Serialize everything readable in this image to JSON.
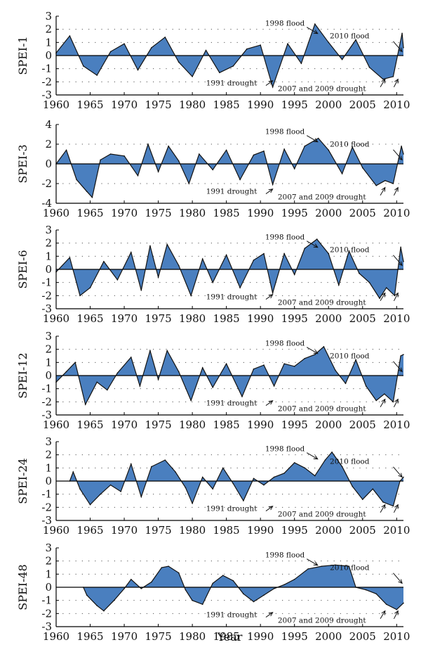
{
  "figure": {
    "xlabel": "Year",
    "colors": {
      "fill": "#4a7fbf",
      "line": "#111111",
      "grid": "#555555"
    }
  },
  "chart_data": [
    {
      "type": "area",
      "ylabel": "SPEI-1",
      "xlim": [
        1960,
        2011
      ],
      "ylim": [
        -3,
        3
      ],
      "xticks": [
        1960,
        1965,
        1970,
        1975,
        1980,
        1985,
        1990,
        1995,
        2000,
        2005,
        2010
      ],
      "yticks": [
        -3,
        -2,
        -1,
        0,
        1,
        2,
        3
      ],
      "grid": "dotted",
      "x": [
        1960,
        1962,
        1964,
        1966,
        1968,
        1970,
        1972,
        1974,
        1976,
        1978,
        1980,
        1982,
        1984,
        1986,
        1988,
        1990,
        1991.8,
        1994,
        1996,
        1998,
        2000,
        2002,
        2004,
        2006,
        2008,
        2009.5,
        2010.8,
        2011
      ],
      "y": [
        0.2,
        1.5,
        -0.8,
        -1.5,
        0.3,
        0.9,
        -1.1,
        0.6,
        1.4,
        -0.5,
        -1.6,
        0.4,
        -1.3,
        -0.8,
        0.5,
        0.8,
        -2.4,
        0.9,
        -0.6,
        2.4,
        1.0,
        -0.3,
        1.2,
        -0.9,
        -1.8,
        -1.6,
        1.7,
        0.6
      ],
      "annotations": [
        "1998 flood",
        "2010 flood",
        "1991 drought",
        "2007 and 2009 drought"
      ]
    },
    {
      "type": "area",
      "ylabel": "SPEI-3",
      "xlim": [
        1960,
        2011
      ],
      "ylim": [
        -4,
        4
      ],
      "xticks": [
        1960,
        1965,
        1970,
        1975,
        1980,
        1985,
        1990,
        1995,
        2000,
        2005,
        2010
      ],
      "yticks": [
        -4,
        -2,
        0,
        2,
        4
      ],
      "grid": "dotted",
      "x": [
        1960,
        1961.5,
        1963,
        1964.5,
        1965.3,
        1966.5,
        1968,
        1970,
        1972,
        1973.5,
        1975,
        1976.5,
        1978,
        1979.5,
        1981,
        1983,
        1985,
        1987,
        1989,
        1990.5,
        1991.8,
        1993.5,
        1995,
        1996.5,
        1998.5,
        2000,
        2002,
        2003.5,
        2005,
        2007,
        2008.3,
        2009.5,
        2010.7,
        2011
      ],
      "y": [
        0.0,
        1.4,
        -1.6,
        -2.8,
        -3.4,
        0.4,
        1.0,
        0.8,
        -1.2,
        2.0,
        -0.8,
        1.8,
        0.3,
        -2.0,
        1.0,
        -0.6,
        1.4,
        -1.6,
        0.9,
        1.3,
        -2.1,
        1.5,
        -0.5,
        1.8,
        2.6,
        1.4,
        -1.0,
        1.7,
        -0.4,
        -2.2,
        -1.7,
        -2.0,
        1.8,
        1.0
      ],
      "annotations": [
        "1998 flood",
        "2010 flood",
        "1991 drought",
        "2007 and 2009 drought"
      ]
    },
    {
      "type": "area",
      "ylabel": "SPEI-6",
      "xlim": [
        1960,
        2011
      ],
      "ylim": [
        -3,
        3
      ],
      "xticks": [
        1960,
        1965,
        1970,
        1975,
        1980,
        1985,
        1990,
        1995,
        2000,
        2005,
        2010
      ],
      "yticks": [
        -3,
        -2,
        -1,
        0,
        1,
        2,
        3
      ],
      "grid": "dotted",
      "x": [
        1960,
        1962,
        1963.5,
        1965,
        1967,
        1969,
        1971,
        1972.5,
        1973.8,
        1975,
        1976.3,
        1978,
        1979.8,
        1981.5,
        1983,
        1985,
        1987,
        1989,
        1990.5,
        1991.8,
        1993.5,
        1995,
        1996.5,
        1998.3,
        2000,
        2001.5,
        2003,
        2004.5,
        2006,
        2007.5,
        2008.5,
        2009.7,
        2010.6,
        2011
      ],
      "y": [
        -0.2,
        0.9,
        -2.0,
        -1.4,
        0.6,
        -0.8,
        1.3,
        -1.6,
        1.8,
        -0.6,
        1.9,
        0.3,
        -2.0,
        0.8,
        -1.0,
        1.1,
        -1.4,
        0.7,
        1.2,
        -1.8,
        1.2,
        -0.4,
        1.6,
        2.3,
        1.2,
        -1.2,
        1.4,
        -0.3,
        -1.0,
        -2.2,
        -1.4,
        -2.0,
        1.7,
        0.6
      ],
      "annotations": [
        "1998 flood",
        "2010 flood",
        "1991 drought",
        "2007 and 2009 drought"
      ]
    },
    {
      "type": "area",
      "ylabel": "SPEI-12",
      "xlim": [
        1960,
        2011
      ],
      "ylim": [
        -3,
        3
      ],
      "xticks": [
        1960,
        1965,
        1970,
        1975,
        1980,
        1985,
        1990,
        1995,
        2000,
        2005,
        2010
      ],
      "yticks": [
        -3,
        -2,
        -1,
        0,
        1,
        2,
        3
      ],
      "grid": "dotted",
      "x": [
        1960,
        1961.5,
        1962.8,
        1964.3,
        1966,
        1967.5,
        1969,
        1971,
        1972.3,
        1973.8,
        1975,
        1976.3,
        1978,
        1979.8,
        1981.5,
        1983,
        1985,
        1987.3,
        1989,
        1990.5,
        1992,
        1993.5,
        1995,
        1996.5,
        1998,
        1999.3,
        2001,
        2002.5,
        2004,
        2005.5,
        2007,
        2008.2,
        2009.5,
        2010.6,
        2011
      ],
      "y": [
        -0.5,
        0.3,
        1.0,
        -2.2,
        -0.5,
        -1.1,
        0.2,
        1.4,
        -0.8,
        1.9,
        -0.3,
        1.9,
        0.3,
        -1.9,
        0.6,
        -0.9,
        0.9,
        -1.6,
        0.5,
        0.8,
        -0.8,
        0.9,
        0.7,
        1.3,
        1.6,
        2.2,
        0.4,
        -0.6,
        1.2,
        -0.8,
        -1.9,
        -1.4,
        -2.0,
        1.5,
        1.6
      ],
      "annotations": [
        "1998 flood",
        "2010 flood",
        "1991 drought",
        "2007 and 2009 drought"
      ]
    },
    {
      "type": "area",
      "ylabel": "SPEI-24",
      "xlim": [
        1960,
        2011
      ],
      "ylim": [
        -3,
        3
      ],
      "xticks": [
        1960,
        1965,
        1970,
        1975,
        1980,
        1985,
        1990,
        1995,
        2000,
        2005,
        2010
      ],
      "yticks": [
        -3,
        -2,
        -1,
        0,
        1,
        2,
        3
      ],
      "grid": "dotted",
      "x": [
        1962,
        1962.5,
        1963.5,
        1965,
        1966.5,
        1968,
        1969.5,
        1971,
        1972.5,
        1974,
        1976,
        1977.5,
        1979,
        1980,
        1981.5,
        1983,
        1984.5,
        1986,
        1987.5,
        1989,
        1990.5,
        1992,
        1993.5,
        1995,
        1996.5,
        1998,
        1999.5,
        2000.5,
        2002,
        2003.5,
        2005,
        2006.5,
        2008,
        2009.5,
        2010.5,
        2011
      ],
      "y": [
        0.0,
        0.7,
        -0.6,
        -1.8,
        -1.0,
        -0.3,
        -0.8,
        1.3,
        -1.2,
        1.1,
        1.6,
        0.7,
        -0.5,
        -1.7,
        0.3,
        -0.6,
        1.0,
        -0.2,
        -1.5,
        0.2,
        -0.3,
        0.3,
        0.6,
        1.4,
        1.0,
        0.4,
        1.6,
        2.2,
        1.1,
        -0.4,
        -1.4,
        -0.6,
        -1.6,
        -1.9,
        0.0,
        0.3
      ],
      "annotations": [
        "1998 flood",
        "2010 flood",
        "1991 drought",
        "2007 and 2009 drought"
      ]
    },
    {
      "type": "area",
      "ylabel": "SPEI-48",
      "xlim": [
        1960,
        2011
      ],
      "ylim": [
        -3,
        3
      ],
      "xticks": [
        1960,
        1965,
        1970,
        1975,
        1980,
        1985,
        1990,
        1995,
        2000,
        2005,
        2010
      ],
      "yticks": [
        -3,
        -2,
        -1,
        0,
        1,
        2,
        3
      ],
      "grid": "dotted",
      "x": [
        1964,
        1964.5,
        1966,
        1967,
        1968.5,
        1970,
        1971,
        1972.5,
        1974,
        1975.5,
        1976.5,
        1978,
        1979,
        1980,
        1981.5,
        1983,
        1984.5,
        1986,
        1987.5,
        1989,
        1990.5,
        1992,
        1993.5,
        1995,
        1997,
        1999,
        2001,
        2003,
        2004,
        2005.5,
        2007,
        2008.5,
        2010,
        2011
      ],
      "y": [
        0.0,
        -0.6,
        -1.4,
        -1.8,
        -1.0,
        -0.1,
        0.6,
        -0.1,
        0.4,
        1.5,
        1.6,
        1.1,
        -0.2,
        -1.0,
        -1.3,
        0.3,
        0.9,
        0.5,
        -0.5,
        -1.1,
        -0.6,
        -0.1,
        0.2,
        0.6,
        1.4,
        1.6,
        1.7,
        1.6,
        0.0,
        -0.2,
        -0.5,
        -1.3,
        -1.7,
        -1.2
      ],
      "annotations": [
        "1998 flood",
        "2010 flood",
        "1991 drought",
        "2007 and 2009 drought"
      ]
    }
  ]
}
